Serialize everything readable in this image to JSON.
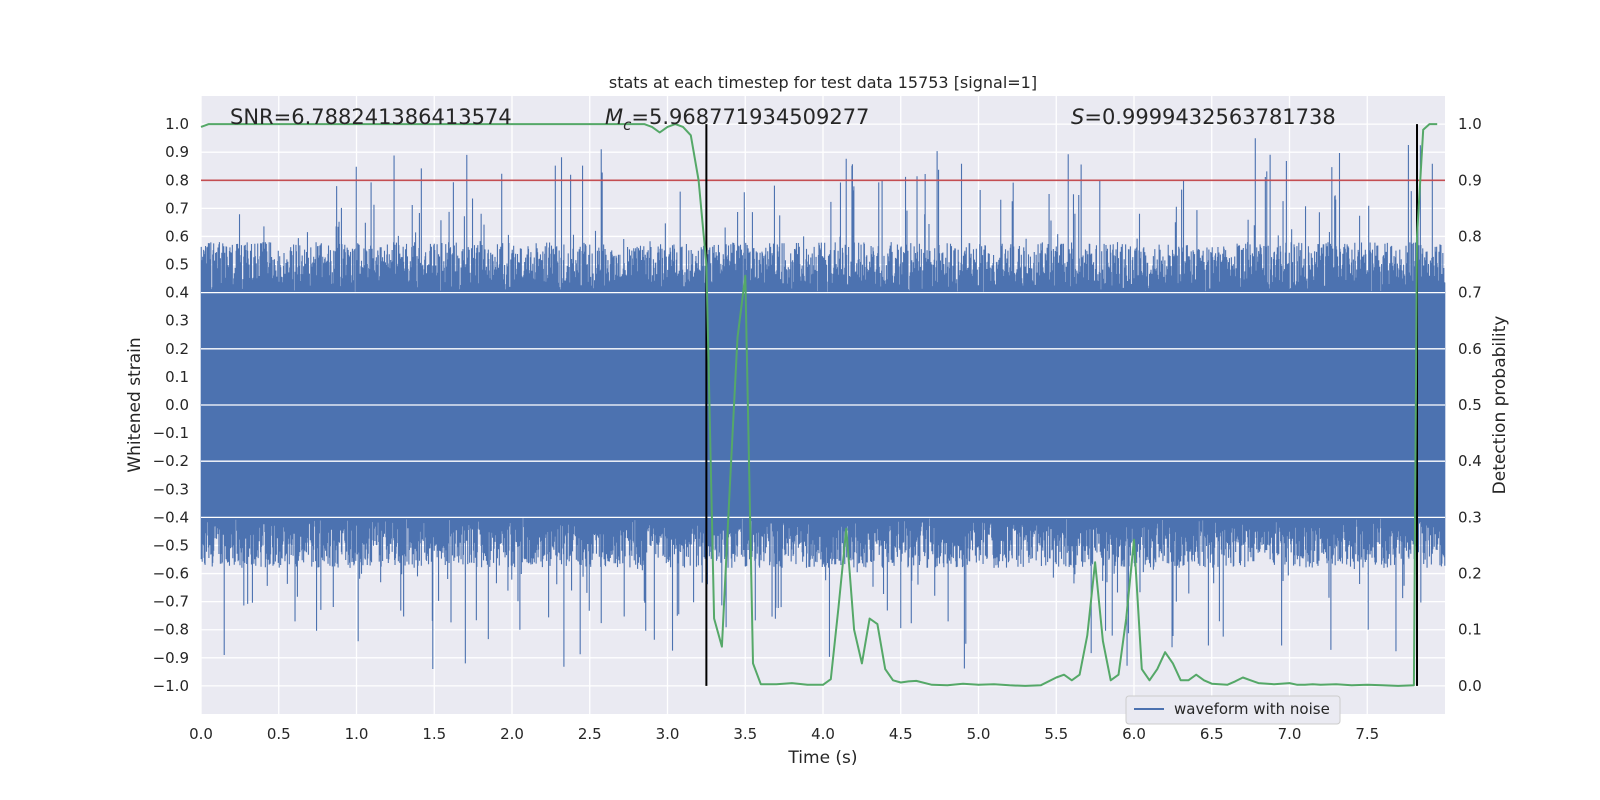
{
  "chart_data": {
    "type": "line",
    "title": "stats at each timestep for test data 15753 [signal=1]",
    "xlabel": "Time (s)",
    "ylabel": "Whitened strain",
    "y2label": "Detection probability",
    "xlim": [
      0,
      8.0
    ],
    "ylim": [
      -1.1,
      1.1
    ],
    "y2lim": [
      -0.05,
      1.05
    ],
    "xticks": [
      "0.0",
      "0.5",
      "1.0",
      "1.5",
      "2.0",
      "2.5",
      "3.0",
      "3.5",
      "4.0",
      "4.5",
      "5.0",
      "5.5",
      "6.0",
      "6.5",
      "7.0",
      "7.5"
    ],
    "yticks": [
      "1.0",
      "0.9",
      "0.8",
      "0.7",
      "0.6",
      "0.5",
      "0.4",
      "0.3",
      "0.2",
      "0.1",
      "0.0",
      "−0.1",
      "−0.2",
      "−0.3",
      "−0.4",
      "−0.5",
      "−0.6",
      "−0.7",
      "−0.8",
      "−0.9",
      "−1.0"
    ],
    "y2ticks": [
      "1.0",
      "0.9",
      "0.8",
      "0.7",
      "0.6",
      "0.5",
      "0.4",
      "0.3",
      "0.2",
      "0.1",
      "0.0"
    ],
    "annotations": {
      "snr": "SNR=6.788241386413574",
      "mc_symbol": "M",
      "mc_sub": "c",
      "mc_value": "=5.968771934509277",
      "s_symbol": "S",
      "s_value": "=0.9999432563781738"
    },
    "threshold": {
      "y": 0.8,
      "color": "#c44e52"
    },
    "vlines": [
      3.25,
      7.82
    ],
    "legend": {
      "label": "waveform with noise",
      "placement": "lower-right"
    },
    "series": [
      {
        "name": "waveform with noise",
        "color": "#4c72b0",
        "envelope_upper_typical": 0.4,
        "envelope_lower_typical": -0.4,
        "peak_max": 0.98,
        "peak_min": -0.99
      },
      {
        "name": "detection probability",
        "color": "#55a868",
        "x": [
          0.0,
          0.05,
          0.1,
          0.5,
          1.0,
          1.5,
          2.0,
          2.5,
          2.85,
          2.9,
          2.95,
          3.0,
          3.05,
          3.1,
          3.15,
          3.2,
          3.25,
          3.3,
          3.35,
          3.4,
          3.45,
          3.5,
          3.55,
          3.6,
          3.7,
          3.8,
          3.9,
          4.0,
          4.05,
          4.1,
          4.15,
          4.2,
          4.25,
          4.3,
          4.35,
          4.4,
          4.45,
          4.5,
          4.55,
          4.6,
          4.7,
          4.8,
          4.9,
          5.0,
          5.1,
          5.2,
          5.3,
          5.4,
          5.5,
          5.55,
          5.6,
          5.65,
          5.7,
          5.75,
          5.8,
          5.85,
          5.9,
          5.95,
          6.0,
          6.05,
          6.1,
          6.15,
          6.2,
          6.25,
          6.3,
          6.35,
          6.4,
          6.45,
          6.5,
          6.55,
          6.6,
          6.65,
          6.7,
          6.75,
          6.8,
          6.9,
          7.0,
          7.05,
          7.1,
          7.15,
          7.2,
          7.3,
          7.4,
          7.5,
          7.6,
          7.7,
          7.8,
          7.82,
          7.86,
          7.9,
          7.95
        ],
        "values": [
          0.995,
          1.0,
          1.0,
          1.0,
          1.0,
          1.0,
          1.0,
          1.0,
          1.0,
          0.995,
          0.985,
          0.995,
          1.0,
          0.995,
          0.98,
          0.9,
          0.75,
          0.12,
          0.07,
          0.35,
          0.62,
          0.73,
          0.04,
          0.003,
          0.003,
          0.005,
          0.002,
          0.002,
          0.012,
          0.14,
          0.28,
          0.1,
          0.04,
          0.12,
          0.11,
          0.03,
          0.01,
          0.006,
          0.008,
          0.009,
          0.002,
          0.001,
          0.004,
          0.002,
          0.003,
          0.001,
          0.0,
          0.001,
          0.015,
          0.02,
          0.01,
          0.02,
          0.09,
          0.22,
          0.08,
          0.01,
          0.02,
          0.12,
          0.26,
          0.03,
          0.01,
          0.03,
          0.06,
          0.04,
          0.01,
          0.01,
          0.02,
          0.01,
          0.004,
          0.003,
          0.002,
          0.008,
          0.015,
          0.01,
          0.005,
          0.003,
          0.005,
          0.002,
          0.002,
          0.003,
          0.002,
          0.003,
          0.001,
          0.002,
          0.001,
          0.0,
          0.001,
          0.8,
          0.99,
          1.0,
          1.0
        ]
      }
    ]
  }
}
